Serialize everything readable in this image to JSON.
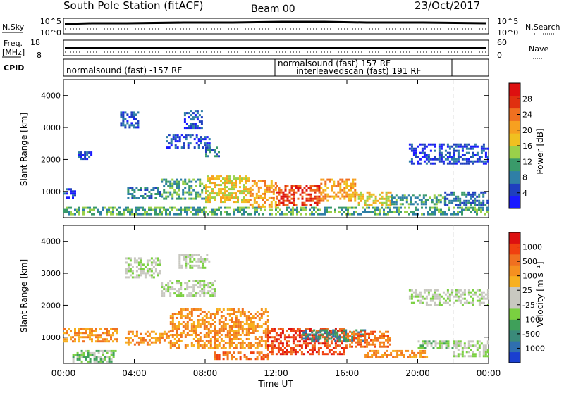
{
  "header": {
    "station": "South Pole Station (fitACF)",
    "beam": "Beam 00",
    "date": "23/Oct/2017"
  },
  "top_panels": {
    "nsky_label": "N.Sky",
    "nsearch_label": "N.Search",
    "nsky_tick_top": "10^5",
    "nsky_tick_bottom": "10^0",
    "freq_label_line1": "Freq.",
    "freq_label_line2": "[MHz]",
    "freq_ticks": [
      "18",
      "8"
    ],
    "nave_label": "Nave",
    "nave_ticks": [
      "60",
      "0"
    ],
    "cpid_label": "CPID",
    "cpid_entries": [
      {
        "text": "normalsound (fast) -157 RF"
      },
      {
        "text": "normalsound (fast) 157 RF"
      },
      {
        "text": "interleavedscan (fast) 191 RF"
      }
    ]
  },
  "chart_data": [
    {
      "type": "heatmap",
      "title": "",
      "xlabel": "",
      "ylabel": "Slant Range [km]",
      "xlim": [
        0,
        24
      ],
      "ylim": [
        180,
        4500
      ],
      "yticks": [
        1000,
        2000,
        3000,
        4000
      ],
      "colorbar_label": "Power [dB]",
      "colorbar_ticks": [
        "4",
        "8",
        "12",
        "16",
        "20",
        "24",
        "28"
      ],
      "colorbar_colors": [
        "#1a1aff",
        "#1f3fbf",
        "#2f7fa6",
        "#3a9a6a",
        "#9ad04a",
        "#f0c020",
        "#f7a020",
        "#f07020",
        "#e03010",
        "#dd1010"
      ],
      "events_x_hours": [
        12,
        22
      ],
      "regions": [
        {
          "x0": 0.0,
          "x1": 24.0,
          "y0": 300,
          "y1": 520,
          "level": 3
        },
        {
          "x0": 0.0,
          "x1": 0.6,
          "y0": 800,
          "y1": 1100,
          "level": 1
        },
        {
          "x0": 3.6,
          "x1": 5.5,
          "y0": 800,
          "y1": 1150,
          "level": 2
        },
        {
          "x0": 5.5,
          "x1": 8.0,
          "y0": 800,
          "y1": 1400,
          "level": 3
        },
        {
          "x0": 8.0,
          "x1": 10.5,
          "y0": 700,
          "y1": 1500,
          "level": 5
        },
        {
          "x0": 10.5,
          "x1": 12.0,
          "y0": 550,
          "y1": 1350,
          "level": 6
        },
        {
          "x0": 12.0,
          "x1": 14.5,
          "y0": 550,
          "y1": 1200,
          "level": 8
        },
        {
          "x0": 14.5,
          "x1": 16.5,
          "y0": 700,
          "y1": 1400,
          "level": 6
        },
        {
          "x0": 16.5,
          "x1": 18.5,
          "y0": 550,
          "y1": 1000,
          "level": 5
        },
        {
          "x0": 18.5,
          "x1": 21.5,
          "y0": 600,
          "y1": 900,
          "level": 3
        },
        {
          "x0": 21.5,
          "x1": 24.0,
          "y0": 600,
          "y1": 1000,
          "level": 2
        },
        {
          "x0": 3.2,
          "x1": 4.2,
          "y0": 3000,
          "y1": 3500,
          "level": 1
        },
        {
          "x0": 5.8,
          "x1": 8.2,
          "y0": 2400,
          "y1": 2800,
          "level": 1
        },
        {
          "x0": 6.8,
          "x1": 7.8,
          "y0": 3000,
          "y1": 3550,
          "level": 1
        },
        {
          "x0": 8.0,
          "x1": 8.8,
          "y0": 2100,
          "y1": 2400,
          "level": 2
        },
        {
          "x0": 19.5,
          "x1": 24.0,
          "y0": 1900,
          "y1": 2500,
          "level": 1
        },
        {
          "x0": 0.8,
          "x1": 1.6,
          "y0": 2050,
          "y1": 2250,
          "level": 1
        }
      ]
    },
    {
      "type": "heatmap",
      "title": "",
      "xlabel": "Time UT",
      "ylabel": "Slant Range [km]",
      "xlim": [
        0,
        24
      ],
      "ylim": [
        180,
        4500
      ],
      "yticks": [
        1000,
        2000,
        3000,
        4000
      ],
      "xticks": [
        "00:00",
        "04:00",
        "08:00",
        "12:00",
        "16:00",
        "20:00",
        "00:00"
      ],
      "colorbar_label": "Velocity [m s⁻¹]",
      "colorbar_ticks": [
        "1000",
        "500",
        "100",
        "25",
        "-25",
        "-100",
        "-500",
        "-1000"
      ],
      "colorbar_colors": [
        "#1a3fd0",
        "#2f6fb0",
        "#3a8a7a",
        "#3fa05a",
        "#7ad040",
        "#c8c8c0",
        "#c8c8c0",
        "#f7b020",
        "#f59020",
        "#f07020",
        "#f04010",
        "#dd1010"
      ],
      "events_x_hours": [
        12,
        22
      ],
      "regions": [
        {
          "x0": 0.5,
          "x1": 3.0,
          "y0": 250,
          "y1": 600,
          "level": 4
        },
        {
          "x0": 0.0,
          "x1": 3.0,
          "y0": 850,
          "y1": 1300,
          "level": 8
        },
        {
          "x0": 3.5,
          "x1": 6.0,
          "y0": 800,
          "y1": 1200,
          "level": 8
        },
        {
          "x0": 6.0,
          "x1": 11.5,
          "y0": 700,
          "y1": 1900,
          "level": 8
        },
        {
          "x0": 8.5,
          "x1": 11.5,
          "y0": 300,
          "y1": 550,
          "level": 9
        },
        {
          "x0": 11.5,
          "x1": 16.0,
          "y0": 500,
          "y1": 1300,
          "level": 10
        },
        {
          "x0": 13.5,
          "x1": 17.0,
          "y0": 900,
          "y1": 1250,
          "level": 2
        },
        {
          "x0": 16.0,
          "x1": 18.5,
          "y0": 700,
          "y1": 1200,
          "level": 9
        },
        {
          "x0": 17.0,
          "x1": 20.5,
          "y0": 400,
          "y1": 600,
          "level": 8
        },
        {
          "x0": 20.0,
          "x1": 22.5,
          "y0": 700,
          "y1": 900,
          "level": 4
        },
        {
          "x0": 22.0,
          "x1": 24.0,
          "y0": 400,
          "y1": 900,
          "level": 5
        },
        {
          "x0": 19.5,
          "x1": 24.0,
          "y0": 2000,
          "y1": 2500,
          "level": 5
        },
        {
          "x0": 3.5,
          "x1": 5.5,
          "y0": 2900,
          "y1": 3500,
          "level": 5
        },
        {
          "x0": 6.5,
          "x1": 8.2,
          "y0": 3200,
          "y1": 3600,
          "level": 5
        },
        {
          "x0": 5.5,
          "x1": 8.5,
          "y0": 2300,
          "y1": 2800,
          "level": 5
        }
      ]
    }
  ]
}
